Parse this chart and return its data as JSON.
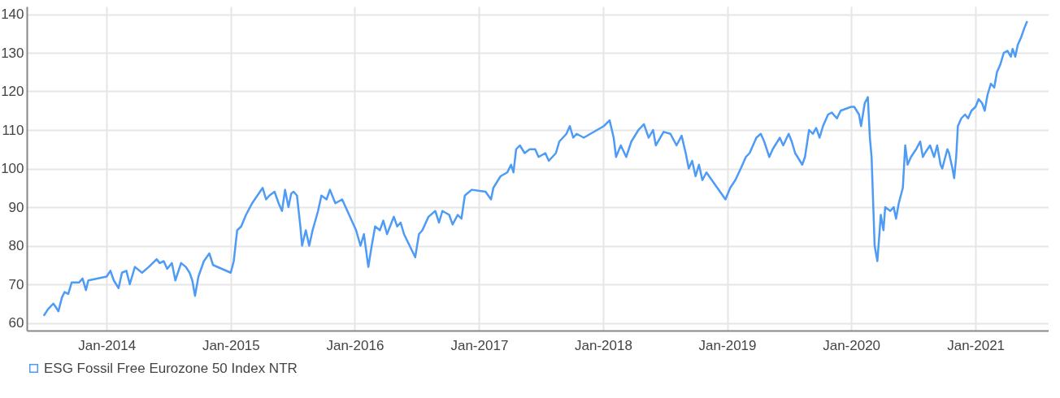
{
  "chart_data": {
    "type": "line",
    "xlim": [
      "2013-05-11",
      "2021-08-04"
    ],
    "ylim": [
      58,
      142
    ],
    "xticks": [
      {
        "value": "2014-01-01",
        "label": "Jan-2014"
      },
      {
        "value": "2015-01-01",
        "label": "Jan-2015"
      },
      {
        "value": "2016-01-01",
        "label": "Jan-2016"
      },
      {
        "value": "2017-01-01",
        "label": "Jan-2017"
      },
      {
        "value": "2018-01-01",
        "label": "Jan-2018"
      },
      {
        "value": "2019-01-01",
        "label": "Jan-2019"
      },
      {
        "value": "2020-01-01",
        "label": "Jan-2020"
      },
      {
        "value": "2021-01-01",
        "label": "Jan-2021"
      }
    ],
    "yticks": [
      60,
      70,
      80,
      90,
      100,
      110,
      120,
      130,
      140
    ],
    "grid": true,
    "legend": "bottom",
    "line_style": "solid",
    "marker": "none",
    "x": [
      "2013-07-01",
      "2013-07-12",
      "2013-07-28",
      "2013-08-05",
      "2013-08-12",
      "2013-08-22",
      "2013-08-30",
      "2013-09-10",
      "2013-09-20",
      "2013-10-12",
      "2013-10-22",
      "2013-11-01",
      "2013-11-08",
      "2014-01-01",
      "2014-01-12",
      "2014-01-22",
      "2014-02-05",
      "2014-02-15",
      "2014-02-28",
      "2014-03-10",
      "2014-03-25",
      "2014-04-15",
      "2014-05-05",
      "2014-05-28",
      "2014-06-06",
      "2014-06-18",
      "2014-06-28",
      "2014-07-12",
      "2014-07-22",
      "2014-08-08",
      "2014-08-22",
      "2014-09-02",
      "2014-09-10",
      "2014-09-18",
      "2014-09-28",
      "2014-10-14",
      "2014-10-30",
      "2014-11-10",
      "2015-01-01",
      "2015-01-10",
      "2015-01-20",
      "2015-02-01",
      "2015-02-15",
      "2015-03-05",
      "2015-04-05",
      "2015-04-15",
      "2015-04-25",
      "2015-05-10",
      "2015-05-22",
      "2015-06-01",
      "2015-06-10",
      "2015-06-20",
      "2015-06-28",
      "2015-07-05",
      "2015-07-15",
      "2015-07-25",
      "2015-07-30",
      "2015-08-10",
      "2015-08-20",
      "2015-08-30",
      "2015-09-15",
      "2015-09-25",
      "2015-10-10",
      "2015-10-20",
      "2015-11-05",
      "2015-11-25",
      "2016-01-05",
      "2016-01-18",
      "2016-01-28",
      "2016-02-10",
      "2016-02-20",
      "2016-03-01",
      "2016-03-15",
      "2016-03-25",
      "2016-04-05",
      "2016-04-25",
      "2016-05-05",
      "2016-05-15",
      "2016-05-25",
      "2016-06-27",
      "2016-07-08",
      "2016-07-18",
      "2016-08-05",
      "2016-08-25",
      "2016-09-05",
      "2016-09-15",
      "2016-10-05",
      "2016-10-15",
      "2016-10-30",
      "2016-11-10",
      "2016-11-20",
      "2016-12-10",
      "2017-01-20",
      "2017-02-05",
      "2017-02-12",
      "2017-03-05",
      "2017-03-25",
      "2017-04-05",
      "2017-04-12",
      "2017-04-20",
      "2017-05-01",
      "2017-05-15",
      "2017-05-30",
      "2017-06-15",
      "2017-06-25",
      "2017-07-15",
      "2017-07-25",
      "2017-08-15",
      "2017-08-25",
      "2017-09-15",
      "2017-09-25",
      "2017-10-05",
      "2017-10-15",
      "2017-11-05",
      "2018-01-03",
      "2018-01-20",
      "2018-02-01",
      "2018-02-08",
      "2018-02-22",
      "2018-03-10",
      "2018-03-25",
      "2018-04-15",
      "2018-05-01",
      "2018-05-15",
      "2018-05-28",
      "2018-06-05",
      "2018-06-28",
      "2018-07-18",
      "2018-08-05",
      "2018-08-20",
      "2018-09-01",
      "2018-09-10",
      "2018-09-20",
      "2018-09-30",
      "2018-10-10",
      "2018-10-20",
      "2018-11-01",
      "2018-12-27",
      "2019-01-10",
      "2019-01-25",
      "2019-02-10",
      "2019-02-25",
      "2019-03-08",
      "2019-03-28",
      "2019-04-10",
      "2019-04-20",
      "2019-05-05",
      "2019-05-15",
      "2019-06-05",
      "2019-06-15",
      "2019-07-01",
      "2019-07-10",
      "2019-07-20",
      "2019-08-10",
      "2019-08-18",
      "2019-08-30",
      "2019-09-10",
      "2019-09-20",
      "2019-09-30",
      "2019-10-10",
      "2019-10-25",
      "2019-11-05",
      "2019-11-20",
      "2019-12-01",
      "2020-01-01",
      "2020-01-10",
      "2020-01-24",
      "2020-01-30",
      "2020-02-10",
      "2020-02-19",
      "2020-02-25",
      "2020-03-01",
      "2020-03-10",
      "2020-03-16",
      "2020-03-18",
      "2020-03-24",
      "2020-03-28",
      "2020-04-05",
      "2020-04-10",
      "2020-04-25",
      "2020-05-05",
      "2020-05-12",
      "2020-05-20",
      "2020-06-01",
      "2020-06-08",
      "2020-06-15",
      "2020-06-25",
      "2020-07-10",
      "2020-07-22",
      "2020-07-30",
      "2020-08-05",
      "2020-08-20",
      "2020-09-01",
      "2020-09-10",
      "2020-09-20",
      "2020-09-25",
      "2020-10-10",
      "2020-10-15",
      "2020-10-25",
      "2020-10-30",
      "2020-11-05",
      "2020-11-10",
      "2020-11-20",
      "2020-12-01",
      "2020-12-10",
      "2020-12-20",
      "2021-01-01",
      "2021-01-10",
      "2021-01-20",
      "2021-01-28",
      "2021-02-05",
      "2021-02-15",
      "2021-02-25",
      "2021-03-05",
      "2021-03-15",
      "2021-03-25",
      "2021-04-05",
      "2021-04-15",
      "2021-04-20",
      "2021-04-28",
      "2021-05-05",
      "2021-05-15",
      "2021-05-25",
      "2021-06-01"
    ],
    "series": [
      {
        "name": "ESG Fossil Free Eurozone 50 Index NTR",
        "color": "#4d9bf5",
        "values": [
          62,
          63.5,
          65,
          64,
          63,
          66.5,
          68,
          67.5,
          70.5,
          70.5,
          71.5,
          68.5,
          71,
          72,
          73.5,
          71,
          69,
          73,
          73.5,
          70,
          74.5,
          73,
          74.5,
          76.5,
          75.5,
          76,
          74,
          75.5,
          71,
          75.5,
          74.5,
          73,
          71,
          67,
          72,
          76,
          78,
          75,
          73,
          76,
          84,
          85,
          88,
          91,
          95,
          92,
          93,
          94,
          91,
          89,
          94.5,
          90,
          93.5,
          94,
          93,
          85,
          80,
          84,
          80,
          84,
          89,
          93,
          92,
          94.5,
          91,
          92,
          84,
          80,
          83,
          74.5,
          80,
          85,
          84,
          86.5,
          83,
          87.5,
          85,
          86,
          83,
          77,
          83,
          84,
          87.5,
          89,
          86,
          89,
          88,
          85.5,
          88,
          87,
          93,
          94.5,
          94,
          92,
          95,
          98,
          99,
          101,
          99,
          105,
          106,
          104,
          105,
          105,
          103,
          104,
          102,
          104,
          107,
          109,
          111,
          108,
          109,
          108,
          111,
          112.5,
          108,
          103,
          106,
          103,
          107,
          110,
          111.5,
          108,
          110,
          106,
          109.5,
          109,
          106,
          108.5,
          104,
          100,
          102,
          98,
          101,
          97,
          99,
          92,
          95,
          97,
          100,
          103,
          104,
          108,
          109,
          107,
          103,
          105,
          108,
          106,
          109,
          107,
          104,
          101,
          103,
          110,
          109,
          110.5,
          108,
          111,
          114,
          114.5,
          113,
          115,
          116,
          116,
          114,
          111,
          117,
          118.5,
          108,
          103,
          80,
          77,
          76,
          83,
          88,
          84,
          90,
          89,
          90,
          87,
          91,
          95,
          106,
          101,
          103,
          105,
          107,
          103,
          104,
          106,
          103,
          106,
          101,
          100,
          105,
          104,
          100,
          97.5,
          103,
          111,
          113,
          114,
          113,
          115,
          116,
          118,
          117,
          115,
          119,
          122,
          121,
          125,
          127,
          130,
          130.5,
          129,
          131,
          129,
          132,
          134,
          136.5,
          138
        ]
      }
    ]
  }
}
